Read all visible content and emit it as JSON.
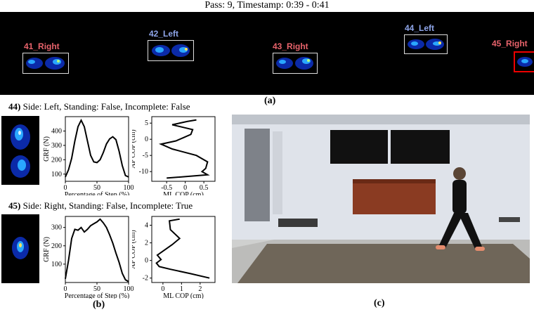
{
  "header": {
    "title": "Pass: 9, Timestamp:  0:39 -  0:41"
  },
  "footprints": [
    {
      "label": "41_Right",
      "side": "right",
      "selected": false
    },
    {
      "label": "42_Left",
      "side": "left",
      "selected": false
    },
    {
      "label": "43_Right",
      "side": "right",
      "selected": false
    },
    {
      "label": "44_Left",
      "side": "left",
      "selected": false
    },
    {
      "label": "45_Right",
      "side": "right",
      "selected": true
    }
  ],
  "colors": {
    "right_label": "#e8636b",
    "left_label": "#8fa6ea",
    "selection": "#e00000",
    "strip_bg": "#000000"
  },
  "captions": {
    "a": "(a)",
    "b": "(b)",
    "c": "(c)"
  },
  "step44": {
    "id": "44)",
    "desc": " Side: Left, Standing: False, Incomplete: False",
    "grf_chart": {
      "type": "line",
      "xlabel": "Percentage of Step (%)",
      "ylabel": "GRF (N)",
      "xlim": [
        0,
        100
      ],
      "ylim": [
        50,
        500
      ],
      "xticks": [
        0,
        50,
        100
      ],
      "yticks": [
        100,
        200,
        300,
        400
      ],
      "x": [
        0,
        5,
        10,
        15,
        20,
        25,
        30,
        35,
        40,
        45,
        50,
        55,
        60,
        65,
        70,
        75,
        80,
        85,
        90,
        95,
        100
      ],
      "y": [
        80,
        130,
        210,
        330,
        430,
        475,
        430,
        330,
        230,
        185,
        180,
        200,
        250,
        310,
        345,
        360,
        340,
        260,
        160,
        90,
        80
      ]
    },
    "cop_chart": {
      "type": "line",
      "xlabel": "ML COP (cm)",
      "ylabel": "AP COP (cm)",
      "xlim": [
        -0.9,
        0.8
      ],
      "ylim": [
        -13,
        7
      ],
      "xticks": [
        -0.5,
        0,
        0.5
      ],
      "xtick_labels": [
        "-0.5",
        "0",
        "0.5"
      ],
      "yticks": [
        -10,
        -5,
        0,
        5
      ],
      "ytick_labels": [
        "-10",
        "-5",
        "0",
        "5"
      ],
      "x": [
        0.3,
        0.05,
        -0.35,
        0.2,
        0.15,
        -0.05,
        -0.25,
        -0.65,
        -0.35,
        0.3,
        0.6,
        0.55,
        0.45,
        0.6,
        -0.5
      ],
      "y": [
        6,
        5.5,
        4.5,
        3,
        1.5,
        0.5,
        -0.5,
        -1.5,
        -3,
        -5,
        -7,
        -9,
        -10,
        -11,
        -12
      ]
    }
  },
  "step45": {
    "id": "45)",
    "desc": " Side: Right, Standing: False, Incomplete: True",
    "grf_chart": {
      "type": "line",
      "xlabel": "Percentage of Step (%)",
      "ylabel": "GRF (N)",
      "xlim": [
        0,
        100
      ],
      "ylim": [
        0,
        360
      ],
      "xticks": [
        0,
        50,
        100
      ],
      "yticks": [
        100,
        200,
        300
      ],
      "x": [
        0,
        5,
        10,
        15,
        20,
        25,
        30,
        35,
        40,
        45,
        50,
        55,
        60,
        65,
        70,
        75,
        80,
        85,
        90,
        95,
        100
      ],
      "y": [
        20,
        120,
        240,
        290,
        285,
        300,
        275,
        290,
        310,
        320,
        330,
        345,
        325,
        300,
        260,
        215,
        160,
        110,
        50,
        15,
        5
      ]
    },
    "cop_chart": {
      "type": "line",
      "xlabel": "ML COP (cm)",
      "ylabel": "AP COP (cm)",
      "xlim": [
        -0.6,
        2.8
      ],
      "ylim": [
        -2.5,
        5
      ],
      "xticks": [
        0,
        1,
        2
      ],
      "xtick_labels": [
        "0",
        "1",
        "2"
      ],
      "yticks": [
        -2,
        0,
        2,
        4
      ],
      "ytick_labels": [
        "-2",
        "0",
        "2",
        "4"
      ],
      "x": [
        0.9,
        0.35,
        0.4,
        0.9,
        0.5,
        0.1,
        -0.3,
        -0.1,
        -0.35,
        -0.2,
        0.4,
        1.5,
        2.5
      ],
      "y": [
        4.7,
        4.5,
        3.5,
        2.5,
        1.8,
        1.2,
        0.6,
        0.1,
        -0.3,
        -0.7,
        -1,
        -1.5,
        -2
      ]
    }
  }
}
